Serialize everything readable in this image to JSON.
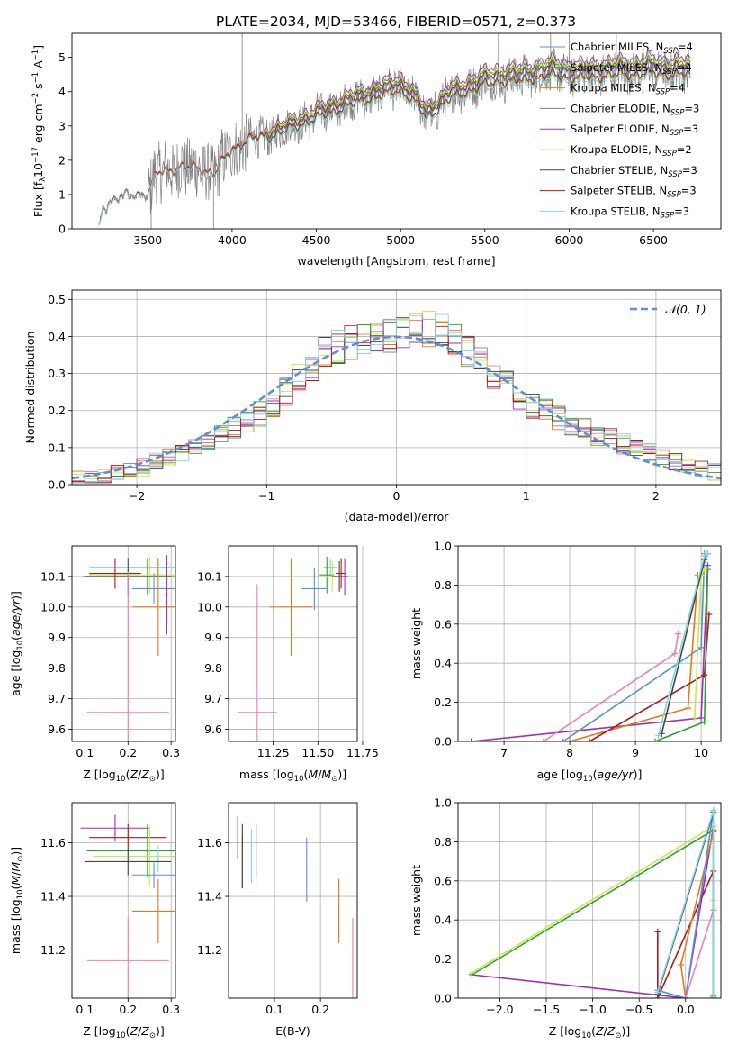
{
  "title": "PLATE=2034, MJD=53466, FIBERID=0571, z=0.373",
  "colors": {
    "grey": "#808080",
    "blue": "#5b8fd6",
    "orange": "#e07b1a",
    "green": "#2ca02c",
    "purple": "#9a32b0",
    "pink": "#e87fbf",
    "lime": "#c8e84a",
    "dark": "#444444",
    "red": "#b01818",
    "cyan": "#7fd6e0",
    "olive": "#7a8a1a"
  },
  "chart_data": [
    {
      "type": "line",
      "id": "spectrum",
      "xlabel": "wavelength [Angstrom, rest frame]",
      "ylabel": "Flux [f_λ 10^-17 erg cm^-2 s^-1 A^-1]",
      "xlim": [
        3050,
        6900
      ],
      "ylim": [
        0,
        5.7
      ],
      "xticks": [
        3500,
        4000,
        4500,
        5000,
        5500,
        6000,
        6500
      ],
      "yticks": [
        0,
        1,
        2,
        3,
        4,
        5
      ],
      "data_range": [
        3210,
        6720
      ],
      "grid": false,
      "legend_position": "top-right",
      "model_anchors": {
        "x": [
          3210,
          3230,
          3300,
          3400,
          3500,
          3550,
          3700,
          3800,
          3900,
          3950,
          4000,
          4100,
          4200,
          4300,
          4400,
          4500,
          4600,
          4700,
          4800,
          4900,
          5000,
          5100,
          5150,
          5200,
          5300,
          5400,
          5500,
          5600,
          5700,
          5800,
          5900,
          6000,
          6100,
          6200,
          6300,
          6400,
          6500,
          6600,
          6720
        ],
        "y": [
          0.0,
          0.6,
          0.85,
          1.0,
          1.0,
          1.6,
          1.8,
          1.75,
          1.6,
          2.0,
          2.3,
          2.6,
          2.7,
          2.9,
          3.1,
          3.3,
          3.5,
          3.7,
          3.85,
          4.0,
          4.15,
          3.7,
          3.3,
          3.5,
          3.9,
          4.1,
          4.3,
          4.4,
          4.4,
          4.5,
          4.6,
          4.5,
          4.5,
          4.55,
          4.6,
          4.6,
          4.65,
          4.6,
          4.6
        ]
      },
      "legend": [
        {
          "label": "Chabrier MILES, N",
          "sub": "SSP",
          "suffix": "=4",
          "color": "#5b8fd6"
        },
        {
          "label": "Salpeter MILES, N",
          "sub": "SSP",
          "suffix": "=4",
          "color": "#2ca02c"
        },
        {
          "label": "Kroupa MILES, N",
          "sub": "SSP",
          "suffix": "=4",
          "color": "#e07b1a"
        },
        {
          "label": "Chabrier ELODIE, N",
          "sub": "SSP",
          "suffix": "=3",
          "color": "#808080"
        },
        {
          "label": "Salpeter ELODIE, N",
          "sub": "SSP",
          "suffix": "=3",
          "color": "#9a32b0"
        },
        {
          "label": "Kroupa ELODIE, N",
          "sub": "SSP",
          "suffix": "=2",
          "color": "#c8e84a"
        },
        {
          "label": "Chabrier STELIB, N",
          "sub": "SSP",
          "suffix": "=3",
          "color": "#444444"
        },
        {
          "label": "Salpeter STELIB, N",
          "sub": "SSP",
          "suffix": "=3",
          "color": "#b01818"
        },
        {
          "label": "Kroupa STELIB, N",
          "sub": "SSP",
          "suffix": "=3",
          "color": "#7fd6e0"
        }
      ]
    },
    {
      "type": "histogram",
      "id": "residuals",
      "xlabel": "(data-model)/error",
      "ylabel": "Normed distribution",
      "xlim": [
        -2.5,
        2.5
      ],
      "ylim": [
        0,
        0.525
      ],
      "xticks": [
        -2,
        -1,
        0,
        1,
        2
      ],
      "yticks": [
        0.0,
        0.1,
        0.2,
        0.3,
        0.4,
        0.5
      ],
      "grid": true,
      "legend_position": "top-right",
      "gauss_label": "𝒩(0, 1)",
      "bin_width": 0.1,
      "series_colors": [
        "#5b8fd6",
        "#e07b1a",
        "#2ca02c",
        "#9a32b0",
        "#e87fbf",
        "#c8e84a",
        "#444444",
        "#b01818",
        "#7fd6e0"
      ],
      "reference_profile": {
        "x": [
          -2.5,
          -2.0,
          -1.5,
          -1.0,
          -0.5,
          0.0,
          0.3,
          0.5,
          1.0,
          1.5,
          2.0,
          2.5
        ],
        "y": [
          0.015,
          0.04,
          0.11,
          0.2,
          0.37,
          0.41,
          0.42,
          0.38,
          0.22,
          0.14,
          0.08,
          0.03
        ]
      }
    },
    {
      "type": "scatter",
      "id": "age-vs-Z",
      "xlabel": "Z [log10(Z/Z_sun)]",
      "ylabel": "age [log10(age/yr)]",
      "xlim": [
        0.07,
        0.31
      ],
      "ylim": [
        9.56,
        10.2
      ],
      "xticks": [
        0.1,
        0.2,
        0.3
      ],
      "yticks": [
        9.6,
        9.7,
        9.8,
        9.9,
        10.0,
        10.1
      ],
      "grid": true,
      "points": [
        {
          "x": 0.27,
          "y": 10.13,
          "xerr": 0.16,
          "yerr": 0.03,
          "color": "#7fd6e0"
        },
        {
          "x": 0.245,
          "y": 10.1,
          "xerr": 0.15,
          "yerr": 0.06,
          "color": "#2ca02c"
        },
        {
          "x": 0.25,
          "y": 10.105,
          "xerr": 0.14,
          "yerr": 0.06,
          "color": "#c8e84a"
        },
        {
          "x": 0.2,
          "y": 10.1,
          "xerr": 0.1,
          "yerr": 0.06,
          "color": "#444444"
        },
        {
          "x": 0.17,
          "y": 10.11,
          "xerr": 0.06,
          "yerr": 0.05,
          "color": "#b01818"
        },
        {
          "x": 0.26,
          "y": 10.06,
          "xerr": 0.05,
          "yerr": 0.05,
          "color": "#5b8fd6"
        },
        {
          "x": 0.27,
          "y": 10.0,
          "xerr": 0.06,
          "yerr": 0.16,
          "color": "#e07b1a"
        },
        {
          "x": 0.29,
          "y": 10.04,
          "xerr": 0.005,
          "yerr": 0.13,
          "color": "#9a32b0"
        },
        {
          "x": 0.2,
          "y": 9.655,
          "xerr": 0.095,
          "yerr": 0.46,
          "color": "#e87fbf"
        }
      ]
    },
    {
      "type": "scatter",
      "id": "age-vs-mass",
      "xlabel": "mass [log10(M/M_sun)]",
      "ylabel": "",
      "xlim": [
        11.0,
        11.72
      ],
      "ylim": [
        9.56,
        10.2
      ],
      "xticks": [
        11.25,
        11.5,
        11.75
      ],
      "yticks": [
        9.6,
        9.7,
        9.8,
        9.9,
        10.0,
        10.1
      ],
      "grid": true,
      "points": [
        {
          "x": 11.57,
          "y": 10.13,
          "xerr": 0.04,
          "yerr": 0.03,
          "color": "#7fd6e0"
        },
        {
          "x": 11.55,
          "y": 10.105,
          "xerr": 0.04,
          "yerr": 0.06,
          "color": "#2ca02c"
        },
        {
          "x": 11.58,
          "y": 10.1,
          "xerr": 0.04,
          "yerr": 0.05,
          "color": "#c8e84a"
        },
        {
          "x": 11.62,
          "y": 10.1,
          "xerr": 0.04,
          "yerr": 0.05,
          "color": "#444444"
        },
        {
          "x": 11.63,
          "y": 10.11,
          "xerr": 0.03,
          "yerr": 0.05,
          "color": "#b01818"
        },
        {
          "x": 11.65,
          "y": 10.1,
          "xerr": 0.02,
          "yerr": 0.06,
          "color": "#9a32b0"
        },
        {
          "x": 11.48,
          "y": 10.06,
          "xerr": 0.07,
          "yerr": 0.07,
          "color": "#5b8fd6"
        },
        {
          "x": 11.35,
          "y": 10.0,
          "xerr": 0.12,
          "yerr": 0.16,
          "color": "#e07b1a"
        },
        {
          "x": 11.16,
          "y": 9.655,
          "xerr": 0.11,
          "yerr": 0.42,
          "color": "#e87fbf"
        }
      ]
    },
    {
      "type": "line",
      "id": "mass-weight-vs-age",
      "xlabel": "age  [log10(age/yr)]",
      "ylabel": "mass weight",
      "xlim": [
        6.3,
        10.3
      ],
      "ylim": [
        0.0,
        1.0
      ],
      "xticks": [
        7,
        8,
        9,
        10
      ],
      "yticks": [
        0.0,
        0.2,
        0.4,
        0.6,
        0.8,
        1.0
      ],
      "grid": true,
      "series": [
        {
          "color": "#9a32b0",
          "x": [
            6.5,
            10.0,
            10.1
          ],
          "y": [
            0.0,
            0.12,
            0.9
          ]
        },
        {
          "color": "#e87fbf",
          "x": [
            7.6,
            9.6,
            9.65
          ],
          "y": [
            0.0,
            0.45,
            0.55
          ]
        },
        {
          "color": "#5b8fd6",
          "x": [
            7.9,
            10.0,
            10.05
          ],
          "y": [
            0.0,
            0.48,
            0.96
          ]
        },
        {
          "color": "#e07b1a",
          "x": [
            8.0,
            9.8,
            9.95
          ],
          "y": [
            0.0,
            0.17,
            0.85
          ]
        },
        {
          "color": "#b01818",
          "x": [
            8.3,
            10.05,
            10.12
          ],
          "y": [
            0.0,
            0.34,
            0.65
          ]
        },
        {
          "color": "#2ca02c",
          "x": [
            9.3,
            10.05,
            10.1
          ],
          "y": [
            0.0,
            0.1,
            0.88
          ]
        },
        {
          "color": "#c8e84a",
          "x": [
            9.9,
            10.0,
            10.05
          ],
          "y": [
            0.12,
            0.85,
            0.88
          ]
        },
        {
          "color": "#444444",
          "x": [
            9.4,
            10.05,
            10.1
          ],
          "y": [
            0.04,
            0.93,
            0.96
          ]
        },
        {
          "color": "#7fd6e0",
          "x": [
            9.35,
            10.05,
            10.1
          ],
          "y": [
            0.03,
            0.95,
            0.96
          ]
        }
      ]
    },
    {
      "type": "scatter",
      "id": "mass-vs-Z",
      "xlabel": "Z [log10(Z/Z_sun)]",
      "ylabel": "mass [log10(M/M_sun)]",
      "xlim": [
        0.07,
        0.31
      ],
      "ylim": [
        11.02,
        11.75
      ],
      "xticks": [
        0.1,
        0.2,
        0.3
      ],
      "yticks": [
        11.2,
        11.4,
        11.6
      ],
      "grid": true,
      "points": [
        {
          "x": 0.17,
          "y": 11.655,
          "xerr": 0.08,
          "yerr": 0.05,
          "color": "#9a32b0"
        },
        {
          "x": 0.2,
          "y": 11.62,
          "xerr": 0.09,
          "yerr": 0.05,
          "color": "#b01818"
        },
        {
          "x": 0.245,
          "y": 11.57,
          "xerr": 0.14,
          "yerr": 0.1,
          "color": "#2ca02c"
        },
        {
          "x": 0.25,
          "y": 11.55,
          "xerr": 0.13,
          "yerr": 0.11,
          "color": "#c8e84a"
        },
        {
          "x": 0.27,
          "y": 11.54,
          "xerr": 0.15,
          "yerr": 0.05,
          "color": "#7fd6e0"
        },
        {
          "x": 0.2,
          "y": 11.53,
          "xerr": 0.1,
          "yerr": 0.05,
          "color": "#444444"
        },
        {
          "x": 0.26,
          "y": 11.48,
          "xerr": 0.05,
          "yerr": 0.05,
          "color": "#5b8fd6"
        },
        {
          "x": 0.27,
          "y": 11.345,
          "xerr": 0.06,
          "yerr": 0.12,
          "color": "#e07b1a"
        },
        {
          "x": 0.2,
          "y": 11.16,
          "xerr": 0.095,
          "yerr": 0.16,
          "color": "#e87fbf"
        }
      ]
    },
    {
      "type": "scatter",
      "id": "mass-vs-EBV",
      "xlabel": "E(B-V)",
      "ylabel": "",
      "xlim": [
        0.0,
        0.28
      ],
      "ylim": [
        11.02,
        11.75
      ],
      "xticks": [
        0.1,
        0.2
      ],
      "yticks": [
        11.2,
        11.4,
        11.6
      ],
      "grid": true,
      "points": [
        {
          "x": 0.02,
          "y": 11.62,
          "xerr": 0.0,
          "yerr": 0.08,
          "color": "#b01818"
        },
        {
          "x": 0.03,
          "y": 11.53,
          "xerr": 0.0,
          "yerr": 0.1,
          "color": "#2ca02c"
        },
        {
          "x": 0.05,
          "y": 11.55,
          "xerr": 0.0,
          "yerr": 0.1,
          "color": "#7fd6e0"
        },
        {
          "x": 0.06,
          "y": 11.57,
          "xerr": 0.0,
          "yerr": 0.1,
          "color": "#9a32b0"
        },
        {
          "x": 0.06,
          "y": 11.53,
          "xerr": 0.0,
          "yerr": 0.1,
          "color": "#c8e84a"
        },
        {
          "x": 0.03,
          "y": 11.55,
          "xerr": 0.0,
          "yerr": 0.12,
          "color": "#444444"
        },
        {
          "x": 0.17,
          "y": 11.5,
          "xerr": 0.0,
          "yerr": 0.12,
          "color": "#5b8fd6"
        },
        {
          "x": 0.24,
          "y": 11.345,
          "xerr": 0.0,
          "yerr": 0.12,
          "color": "#e07b1a"
        },
        {
          "x": 0.27,
          "y": 11.16,
          "xerr": 0.0,
          "yerr": 0.16,
          "color": "#e87fbf"
        }
      ]
    },
    {
      "type": "line",
      "id": "mass-weight-vs-Z",
      "xlabel": "Z [log10(Z/Z_sun)]",
      "ylabel": "mass weight",
      "xlim": [
        -2.45,
        0.38
      ],
      "ylim": [
        0.0,
        1.0
      ],
      "xticks": [
        -2.0,
        -1.5,
        -1.0,
        -0.5,
        0.0
      ],
      "yticks": [
        0.0,
        0.2,
        0.4,
        0.6,
        0.8,
        1.0
      ],
      "grid": true,
      "series": [
        {
          "color": "#9a32b0",
          "x": [
            -2.3,
            0.0,
            0.3
          ],
          "y": [
            0.12,
            0.0,
            0.88
          ]
        },
        {
          "color": "#2ca02c",
          "x": [
            -2.3,
            0.3,
            0.3
          ],
          "y": [
            0.12,
            0.86,
            0.01
          ]
        },
        {
          "color": "#c8e84a",
          "x": [
            -2.3,
            0.3,
            0.3
          ],
          "y": [
            0.13,
            0.88,
            0.5
          ]
        },
        {
          "color": "#b01818",
          "x": [
            -0.3,
            -0.3,
            0.3,
            0.3
          ],
          "y": [
            0.34,
            0.0,
            0.65,
            0.0
          ]
        },
        {
          "color": "#e07b1a",
          "x": [
            0.0,
            -0.05,
            0.3
          ],
          "y": [
            0.0,
            0.17,
            0.85
          ]
        },
        {
          "color": "#5b8fd6",
          "x": [
            -0.3,
            0.0,
            0.3
          ],
          "y": [
            0.04,
            0.0,
            0.96
          ]
        },
        {
          "color": "#e87fbf",
          "x": [
            0.0,
            0.3
          ],
          "y": [
            0.0,
            0.45
          ]
        },
        {
          "color": "#444444",
          "x": [
            -0.3,
            0.3,
            0.3
          ],
          "y": [
            0.02,
            0.95,
            0.0
          ]
        },
        {
          "color": "#7fd6e0",
          "x": [
            -0.3,
            0.3,
            0.3
          ],
          "y": [
            0.03,
            0.96,
            0.0
          ]
        }
      ]
    }
  ]
}
